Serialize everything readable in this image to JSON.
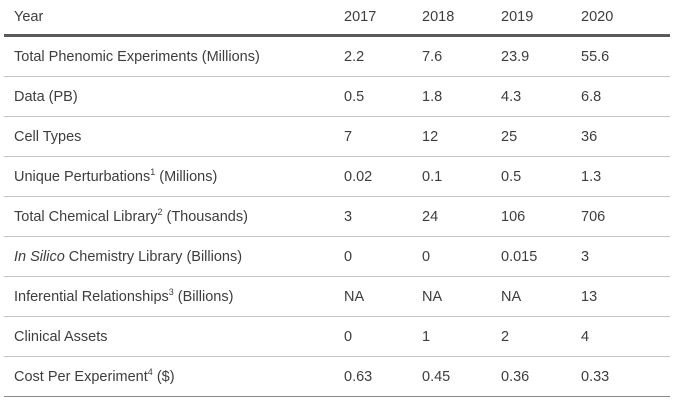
{
  "table": {
    "header": {
      "label": "Year",
      "years": [
        "2017",
        "2018",
        "2019",
        "2020"
      ]
    },
    "rows": [
      {
        "label": "Total Phenomic Experiments (Millions)",
        "values": [
          "2.2",
          "7.6",
          "23.9",
          "55.6"
        ]
      },
      {
        "label": "Data (PB)",
        "values": [
          "0.5",
          "1.8",
          "4.3",
          "6.8"
        ]
      },
      {
        "label": "Cell Types",
        "values": [
          "7",
          "12",
          "25",
          "36"
        ]
      },
      {
        "label_main": "Unique Perturbations",
        "label_sup": "1",
        "label_tail": " (Millions)",
        "values": [
          "0.02",
          "0.1",
          "0.5",
          "1.3"
        ]
      },
      {
        "label_main": "Total Chemical Library",
        "label_sup": "2",
        "label_tail": " (Thousands)",
        "values": [
          "3",
          "24",
          "106",
          "706"
        ]
      },
      {
        "label_italic": "In Silico",
        "label_tail": " Chemistry Library (Billions)",
        "values": [
          "0",
          "0",
          "0.015",
          "3"
        ]
      },
      {
        "label_main": "Inferential Relationships",
        "label_sup": "3",
        "label_tail": " (Billions)",
        "values": [
          "NA",
          "NA",
          "NA",
          "13"
        ]
      },
      {
        "label": "Clinical Assets",
        "values": [
          "0",
          "1",
          "2",
          "4"
        ]
      },
      {
        "label_main": "Cost Per Experiment",
        "label_sup": "4",
        "label_tail": " ($)",
        "values": [
          "0.63",
          "0.45",
          "0.36",
          "0.33"
        ]
      }
    ]
  }
}
